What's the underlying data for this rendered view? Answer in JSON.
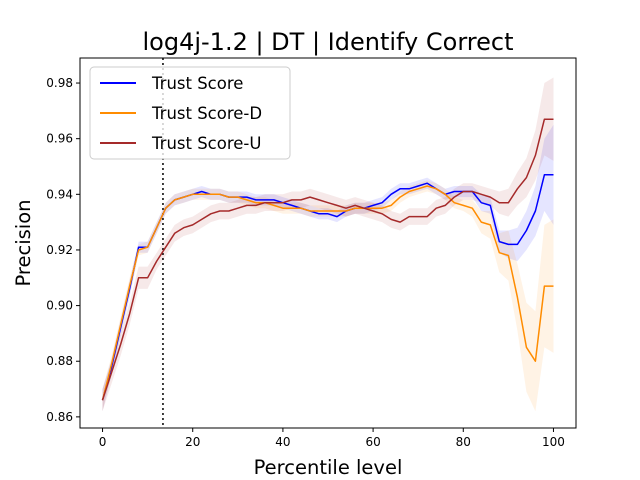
{
  "chart_data": {
    "type": "line",
    "title": "log4j-1.2 | DT | Identify Correct",
    "xlabel": "Percentile level",
    "ylabel": "Precision",
    "xlim": [
      -5,
      105
    ],
    "ylim": [
      0.856,
      0.989
    ],
    "xticks": [
      0,
      20,
      40,
      60,
      80,
      100
    ],
    "yticks": [
      0.86,
      0.88,
      0.9,
      0.92,
      0.94,
      0.96,
      0.98
    ],
    "xtick_labels": [
      "0",
      "20",
      "40",
      "60",
      "80",
      "100"
    ],
    "ytick_labels": [
      "0.86",
      "0.88",
      "0.90",
      "0.92",
      "0.94",
      "0.96",
      "0.98"
    ],
    "grid": false,
    "legend_position": "top-left",
    "vline": {
      "x": 13.4,
      "style": "dotted",
      "color": "#000000"
    },
    "x": [
      0,
      2,
      4,
      6,
      8,
      10,
      12,
      14,
      16,
      18,
      20,
      22,
      24,
      26,
      28,
      30,
      32,
      34,
      36,
      38,
      40,
      42,
      44,
      46,
      48,
      50,
      52,
      54,
      56,
      58,
      60,
      62,
      64,
      66,
      68,
      70,
      72,
      74,
      76,
      78,
      80,
      82,
      84,
      86,
      88,
      90,
      92,
      94,
      96,
      98,
      100
    ],
    "series": [
      {
        "name": "Trust Score",
        "color": "#0000ff",
        "values": [
          0.866,
          0.878,
          0.892,
          0.906,
          0.921,
          0.921,
          0.928,
          0.935,
          0.938,
          0.939,
          0.94,
          0.941,
          0.94,
          0.94,
          0.939,
          0.939,
          0.939,
          0.938,
          0.938,
          0.938,
          0.937,
          0.936,
          0.935,
          0.934,
          0.933,
          0.933,
          0.932,
          0.934,
          0.935,
          0.935,
          0.936,
          0.937,
          0.94,
          0.942,
          0.942,
          0.943,
          0.944,
          0.942,
          0.94,
          0.941,
          0.941,
          0.941,
          0.937,
          0.936,
          0.923,
          0.922,
          0.922,
          0.927,
          0.934,
          0.947,
          0.947
        ],
        "band_halfwidth": [
          0.004,
          0.003,
          0.003,
          0.003,
          0.002,
          0.002,
          0.002,
          0.002,
          0.002,
          0.002,
          0.002,
          0.002,
          0.002,
          0.002,
          0.002,
          0.002,
          0.002,
          0.002,
          0.002,
          0.002,
          0.002,
          0.002,
          0.002,
          0.002,
          0.002,
          0.002,
          0.002,
          0.002,
          0.002,
          0.002,
          0.002,
          0.002,
          0.002,
          0.002,
          0.002,
          0.002,
          0.002,
          0.002,
          0.002,
          0.002,
          0.002,
          0.002,
          0.003,
          0.003,
          0.004,
          0.005,
          0.006,
          0.007,
          0.009,
          0.013,
          0.018
        ]
      },
      {
        "name": "Trust Score-D",
        "color": "#ff8c00",
        "values": [
          0.866,
          0.879,
          0.893,
          0.907,
          0.92,
          0.921,
          0.928,
          0.935,
          0.938,
          0.939,
          0.94,
          0.94,
          0.94,
          0.94,
          0.939,
          0.939,
          0.938,
          0.937,
          0.937,
          0.936,
          0.935,
          0.935,
          0.935,
          0.934,
          0.934,
          0.934,
          0.934,
          0.934,
          0.935,
          0.935,
          0.935,
          0.935,
          0.936,
          0.939,
          0.941,
          0.942,
          0.943,
          0.942,
          0.94,
          0.937,
          0.936,
          0.935,
          0.93,
          0.929,
          0.919,
          0.918,
          0.903,
          0.885,
          0.88,
          0.907,
          0.907
        ],
        "band_halfwidth": [
          0.004,
          0.003,
          0.003,
          0.003,
          0.002,
          0.002,
          0.002,
          0.002,
          0.002,
          0.002,
          0.002,
          0.002,
          0.002,
          0.002,
          0.002,
          0.002,
          0.002,
          0.002,
          0.002,
          0.002,
          0.002,
          0.002,
          0.002,
          0.002,
          0.002,
          0.002,
          0.002,
          0.002,
          0.002,
          0.002,
          0.002,
          0.002,
          0.002,
          0.002,
          0.002,
          0.002,
          0.002,
          0.002,
          0.002,
          0.002,
          0.002,
          0.003,
          0.004,
          0.005,
          0.007,
          0.009,
          0.012,
          0.016,
          0.018,
          0.022,
          0.024
        ]
      },
      {
        "name": "Trust Score-U",
        "color": "#a52a2a",
        "values": [
          0.866,
          0.876,
          0.886,
          0.897,
          0.91,
          0.91,
          0.916,
          0.921,
          0.926,
          0.928,
          0.929,
          0.931,
          0.933,
          0.934,
          0.934,
          0.935,
          0.936,
          0.936,
          0.937,
          0.937,
          0.937,
          0.938,
          0.938,
          0.939,
          0.938,
          0.937,
          0.936,
          0.935,
          0.936,
          0.935,
          0.934,
          0.933,
          0.931,
          0.93,
          0.932,
          0.932,
          0.932,
          0.935,
          0.936,
          0.939,
          0.941,
          0.941,
          0.94,
          0.939,
          0.937,
          0.937,
          0.942,
          0.946,
          0.954,
          0.967,
          0.967
        ],
        "band_halfwidth": [
          0.004,
          0.004,
          0.004,
          0.004,
          0.004,
          0.004,
          0.003,
          0.003,
          0.003,
          0.003,
          0.003,
          0.003,
          0.003,
          0.003,
          0.003,
          0.003,
          0.003,
          0.003,
          0.003,
          0.003,
          0.003,
          0.003,
          0.003,
          0.003,
          0.003,
          0.003,
          0.003,
          0.003,
          0.003,
          0.003,
          0.003,
          0.003,
          0.003,
          0.003,
          0.003,
          0.003,
          0.003,
          0.003,
          0.003,
          0.003,
          0.003,
          0.003,
          0.003,
          0.003,
          0.004,
          0.005,
          0.006,
          0.007,
          0.009,
          0.013,
          0.015
        ]
      }
    ]
  }
}
